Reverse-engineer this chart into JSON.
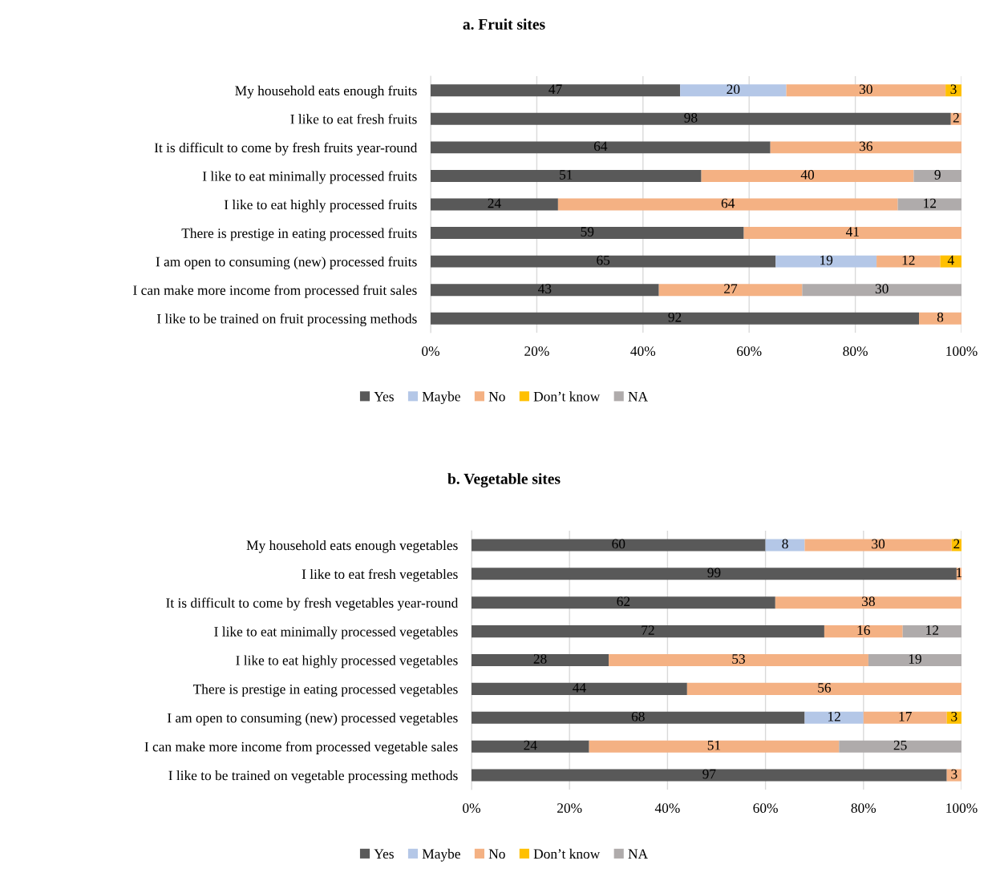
{
  "chart_data": [
    {
      "type": "bar",
      "title": "a. Fruit sites",
      "orientation": "horizontal",
      "stacked": true,
      "data_labels": true,
      "grid": "x",
      "legend": "bottom",
      "categories": [
        "My household eats enough fruits",
        "I like to eat fresh fruits",
        "It is difficult to come by fresh fruits year-round",
        "I like to eat minimally processed fruits",
        "I like to eat highly processed fruits",
        "There is prestige in eating processed fruits",
        "I am open to consuming (new) processed fruits",
        "I can make more income from processed fruit sales",
        "I like to be trained on fruit processing methods"
      ],
      "xlim": [
        0,
        100
      ],
      "xticks": [
        {
          "value": 0,
          "label": "0%"
        },
        {
          "value": 20,
          "label": "20%"
        },
        {
          "value": 40,
          "label": "40%"
        },
        {
          "value": 60,
          "label": "60%"
        },
        {
          "value": 80,
          "label": "80%"
        },
        {
          "value": 100,
          "label": "100%"
        }
      ],
      "series": [
        {
          "name": "Yes",
          "color": "#595959",
          "values": [
            47,
            98,
            64,
            51,
            24,
            59,
            65,
            43,
            92
          ]
        },
        {
          "name": "Maybe",
          "color": "#b4c7e7",
          "values": [
            20,
            null,
            null,
            null,
            null,
            null,
            19,
            null,
            null
          ]
        },
        {
          "name": "No",
          "color": "#f4b183",
          "values": [
            30,
            2,
            36,
            40,
            64,
            41,
            12,
            27,
            8
          ]
        },
        {
          "name": "Don’t know",
          "color": "#ffc000",
          "values": [
            3,
            null,
            null,
            null,
            null,
            null,
            4,
            null,
            null
          ]
        },
        {
          "name": "NA",
          "color": "#afabab",
          "values": [
            null,
            null,
            null,
            9,
            12,
            null,
            null,
            30,
            null
          ]
        }
      ]
    },
    {
      "type": "bar",
      "title": "b. Vegetable sites",
      "orientation": "horizontal",
      "stacked": true,
      "data_labels": true,
      "grid": "x",
      "legend": "bottom",
      "categories": [
        "My household eats enough vegetables",
        "I like to eat fresh vegetables",
        "It is difficult to come by fresh vegetables year-round",
        "I like to eat minimally processed vegetables",
        "I like to eat highly processed vegetables",
        "There is prestige in eating processed vegetables",
        "I am open to consuming (new) processed vegetables",
        "I can make more income from processed vegetable sales",
        "I like to be trained on vegetable processing methods"
      ],
      "xlim": [
        0,
        100
      ],
      "xticks": [
        {
          "value": 0,
          "label": "0%"
        },
        {
          "value": 20,
          "label": "20%"
        },
        {
          "value": 40,
          "label": "40%"
        },
        {
          "value": 60,
          "label": "60%"
        },
        {
          "value": 80,
          "label": "80%"
        },
        {
          "value": 100,
          "label": "100%"
        }
      ],
      "series": [
        {
          "name": "Yes",
          "color": "#595959",
          "values": [
            60,
            99,
            62,
            72,
            28,
            44,
            68,
            24,
            97
          ]
        },
        {
          "name": "Maybe",
          "color": "#b4c7e7",
          "values": [
            8,
            null,
            null,
            null,
            null,
            null,
            12,
            null,
            null
          ]
        },
        {
          "name": "No",
          "color": "#f4b183",
          "values": [
            30,
            1,
            38,
            16,
            53,
            56,
            17,
            51,
            3
          ]
        },
        {
          "name": "Don’t know",
          "color": "#ffc000",
          "values": [
            2,
            null,
            null,
            null,
            null,
            null,
            3,
            null,
            null
          ]
        },
        {
          "name": "NA",
          "color": "#afabab",
          "values": [
            null,
            null,
            null,
            12,
            19,
            null,
            null,
            25,
            null
          ]
        }
      ]
    }
  ]
}
